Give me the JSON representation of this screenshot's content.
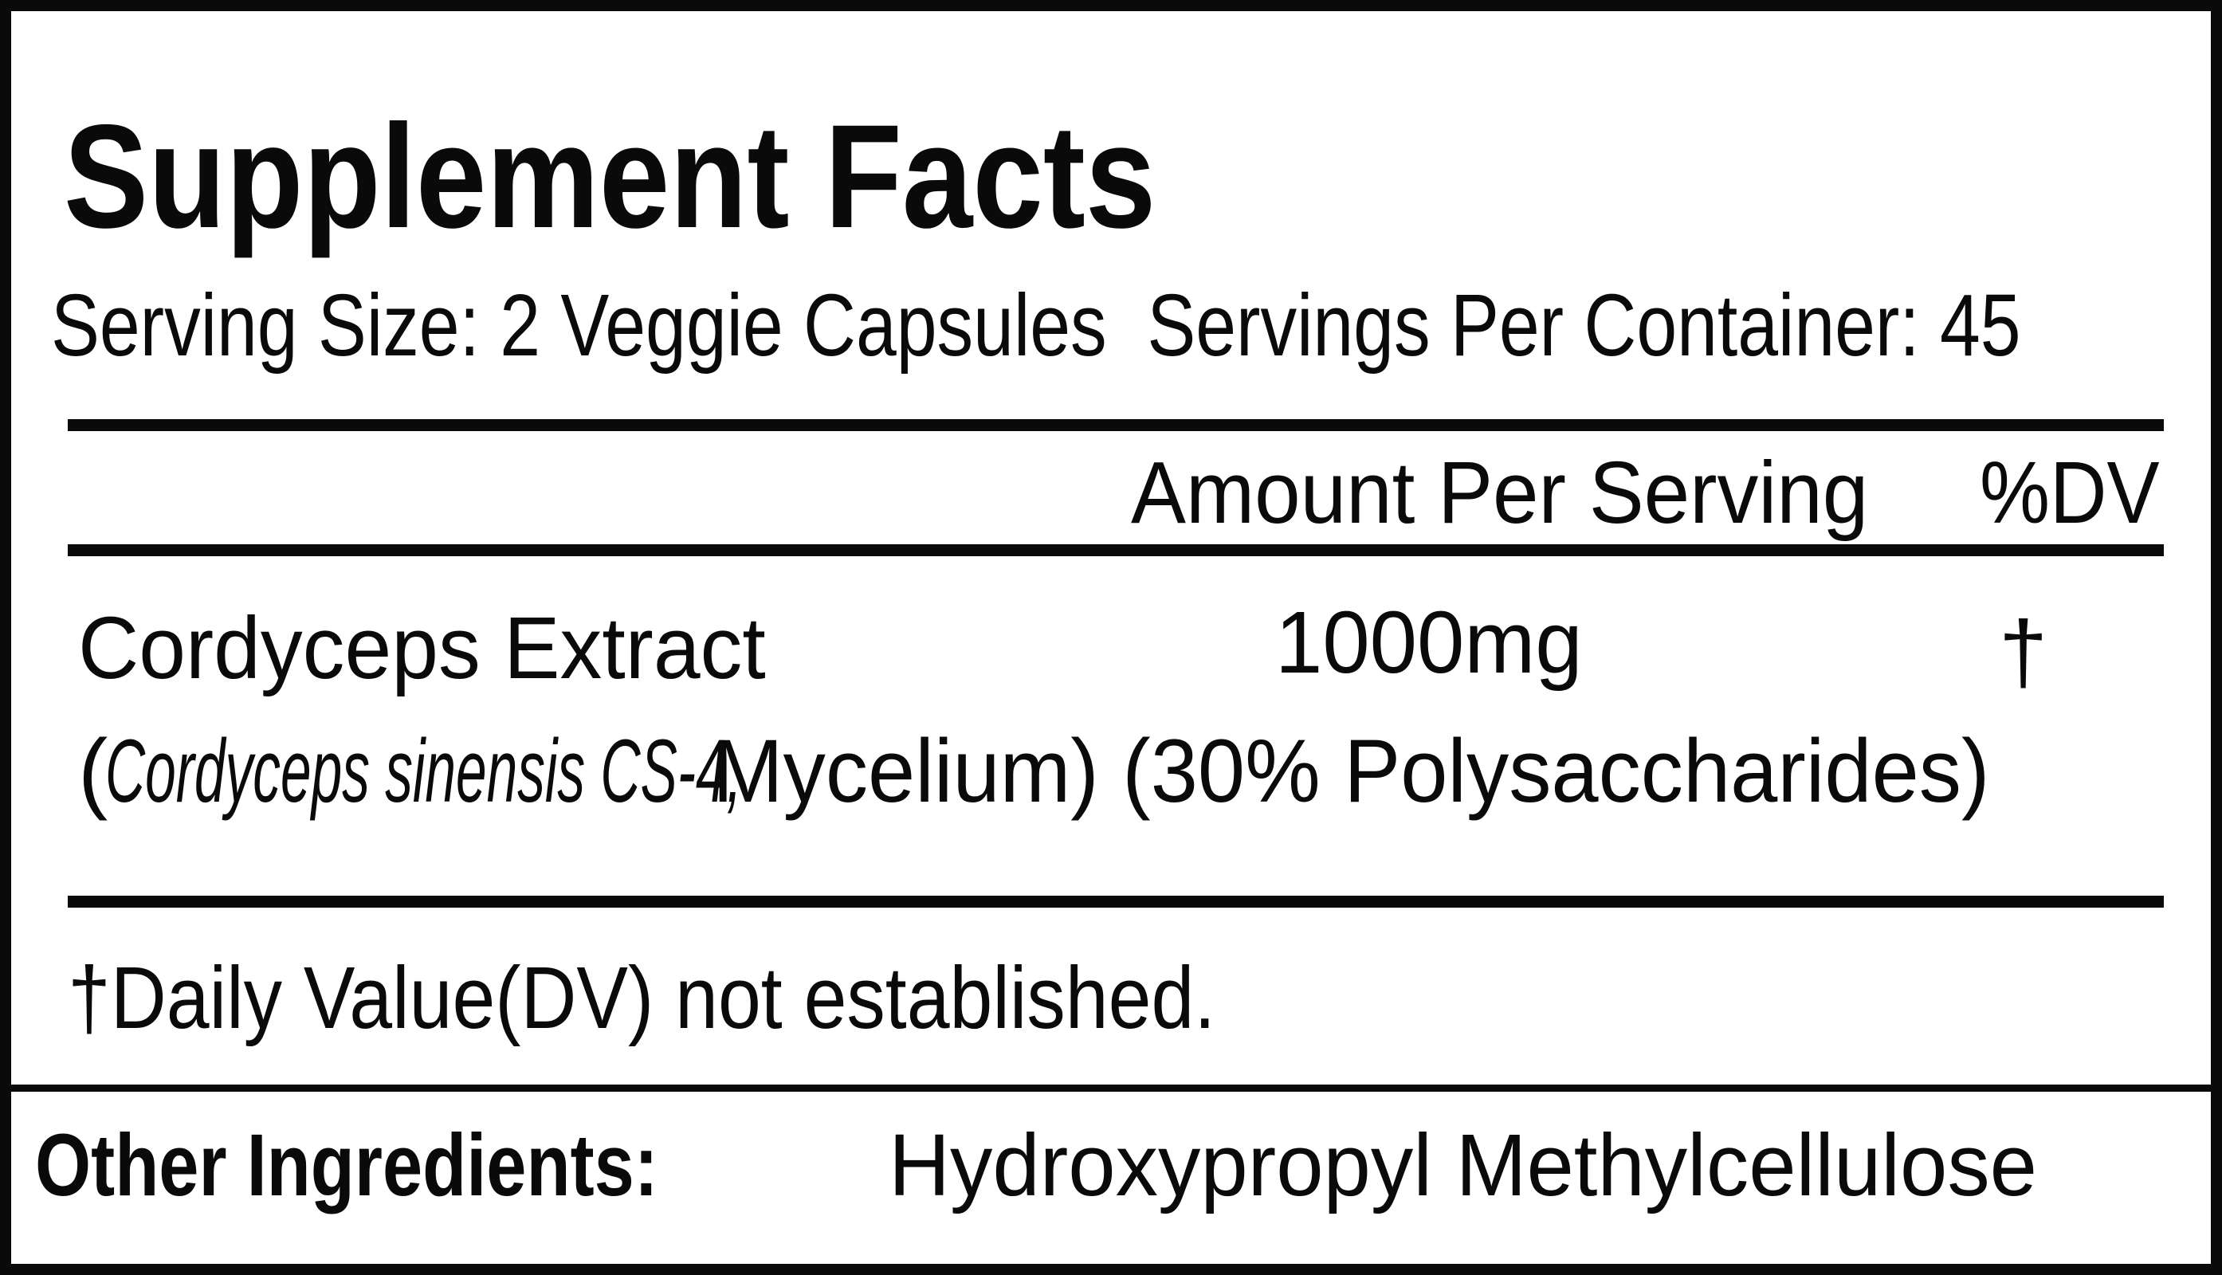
{
  "title": "Supplement Facts",
  "serving_line": "Serving Size: 2 Veggie Capsules  Servings Per Container: 45",
  "header": {
    "amount": "Amount Per Serving",
    "dv": "%DV"
  },
  "ingredient": {
    "name": "Cordyceps Extract",
    "amount": "1000mg",
    "dv": "†",
    "detail_open": "(",
    "detail_italic": "Cordyceps sinensis CS-4,",
    "detail_rest": "Mycelium) (30% Polysaccharides)"
  },
  "footnote": "†Daily Value(DV) not established.",
  "other": {
    "label": "Other Ingredients:",
    "value": "Hydroxypropyl Methylcellulose"
  }
}
